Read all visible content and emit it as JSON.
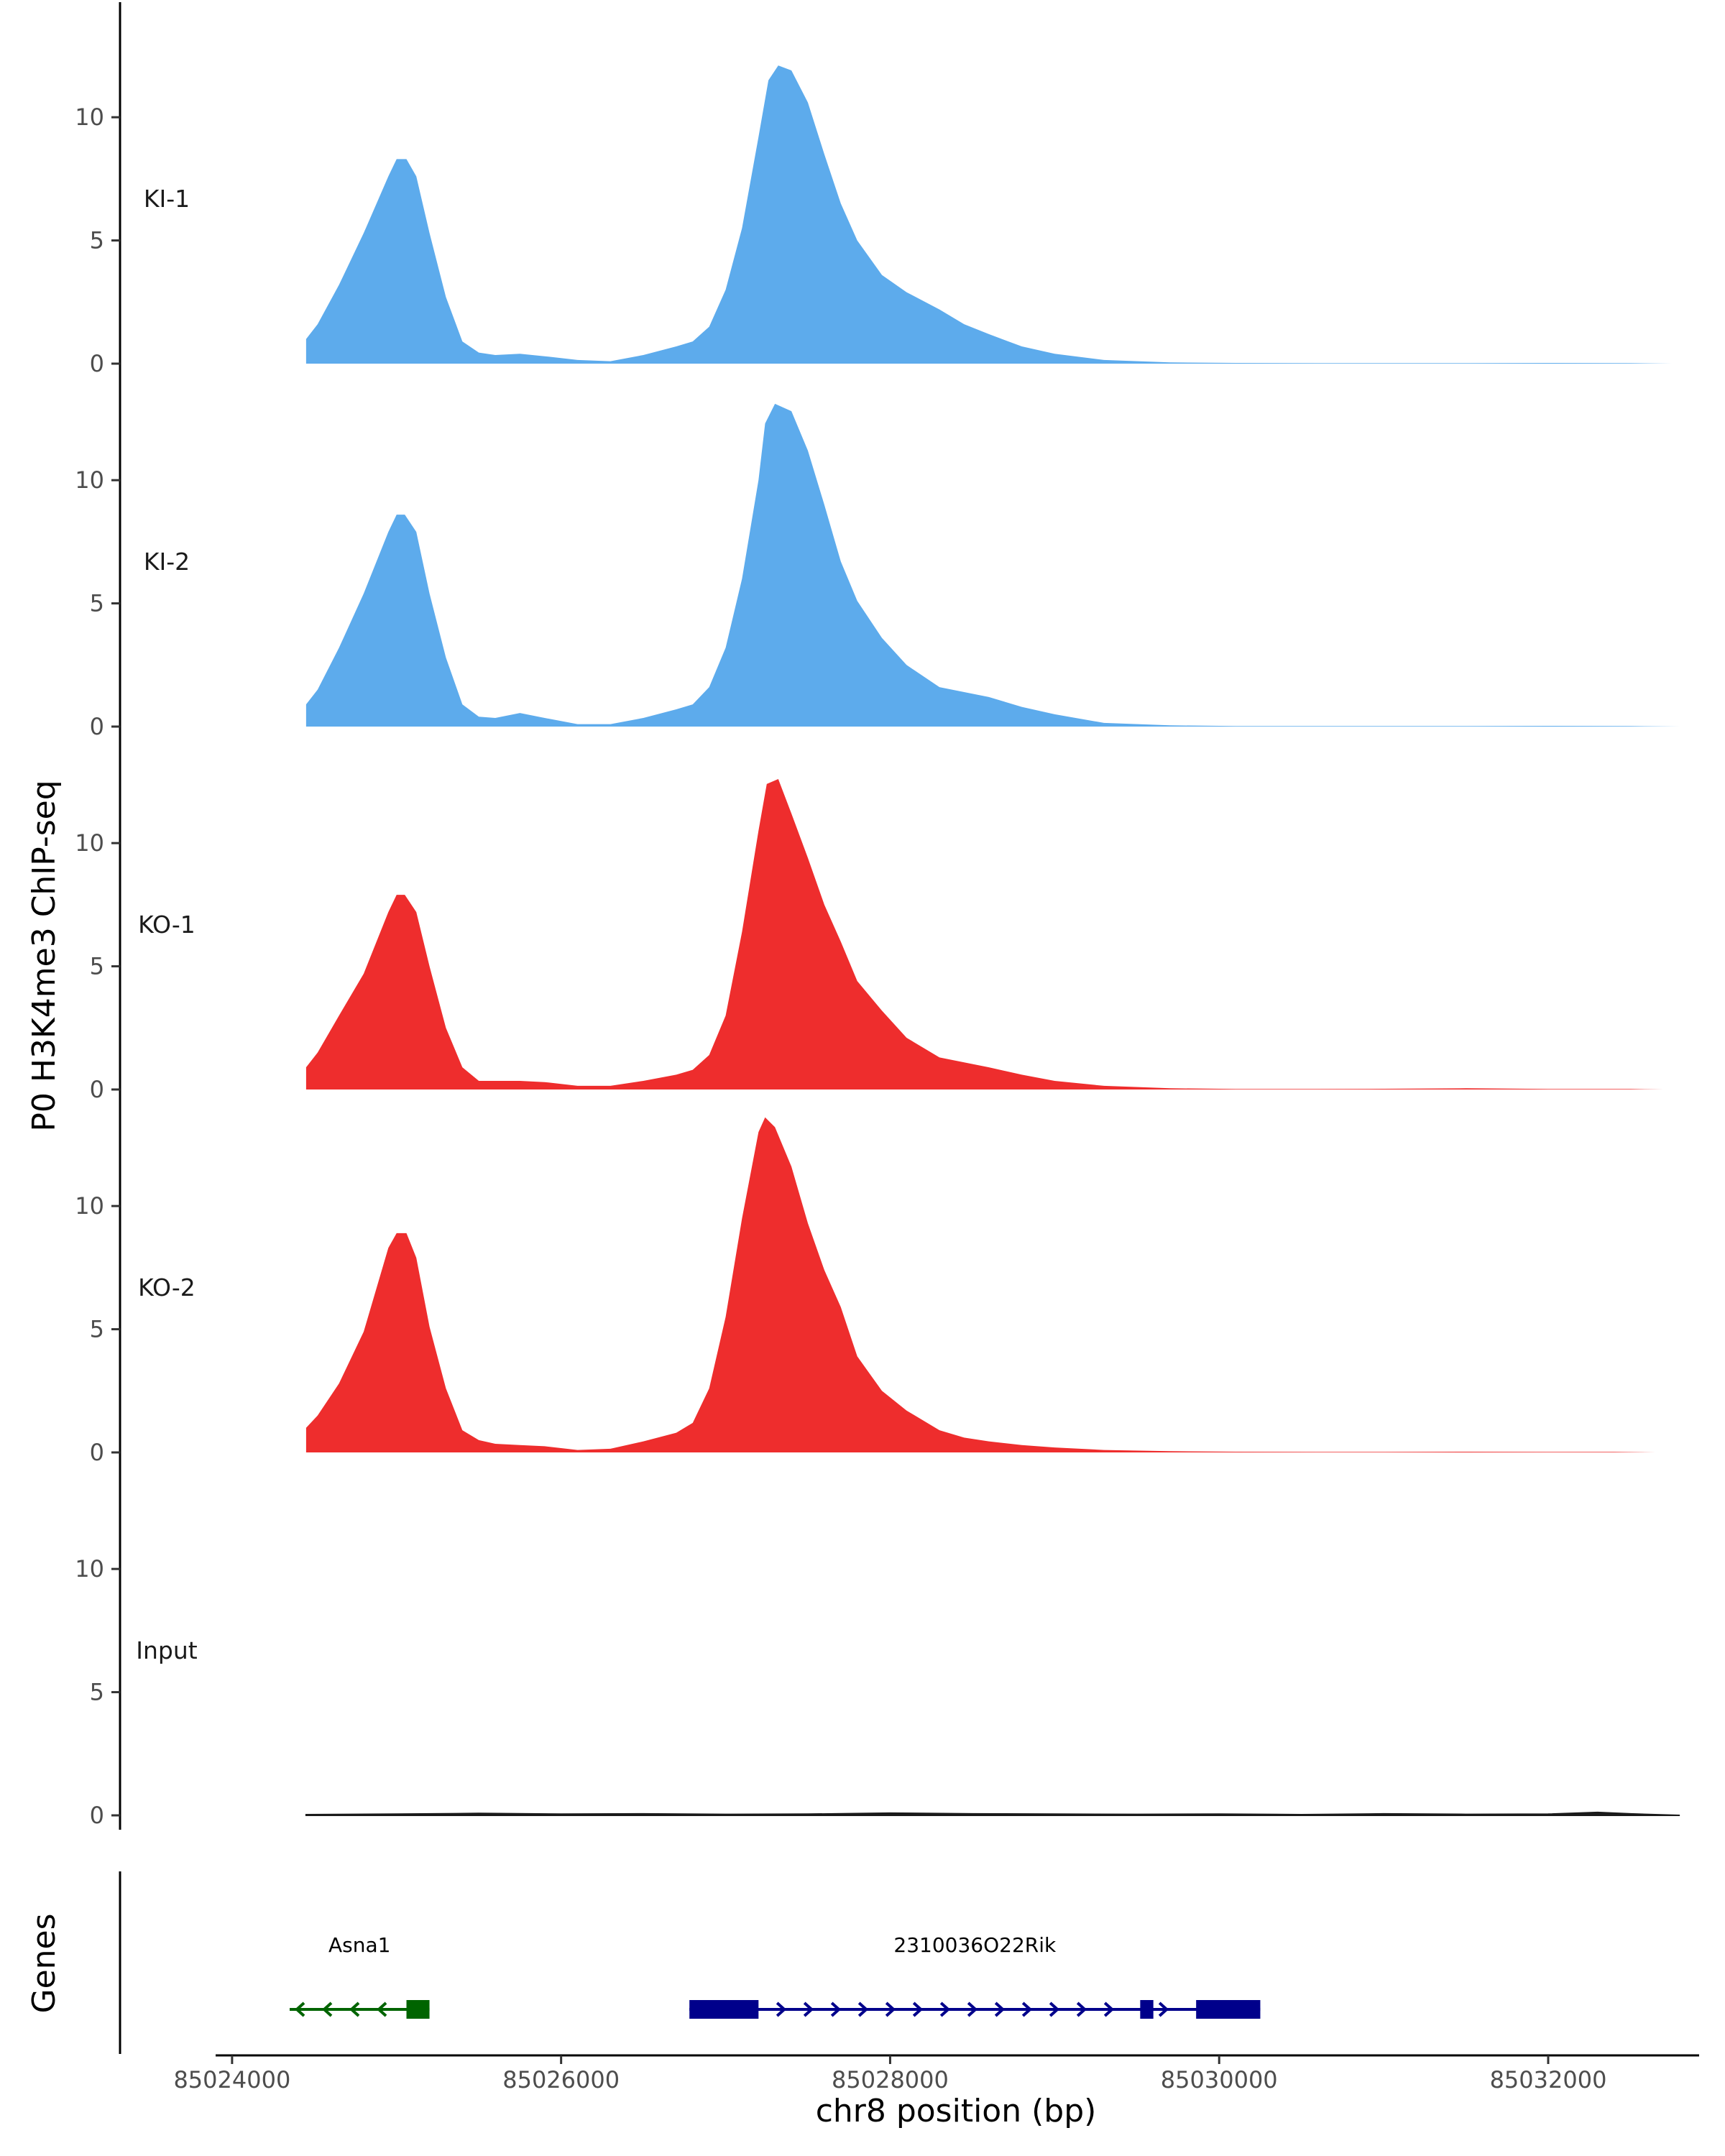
{
  "chart_data": {
    "type": "area",
    "ylabel": "P0 H3K4me3 ChIP-seq",
    "xlabel": "chr8 position (bp)",
    "xlim": [
      85023900,
      85032900
    ],
    "ylim": [
      0,
      14
    ],
    "y_ticks": [
      0,
      5,
      10
    ],
    "x_ticks": [
      85024000,
      85026000,
      85028000,
      85030000,
      85032000
    ],
    "x_tick_labels": [
      "85024000",
      "85026000",
      "85028000",
      "85030000",
      "85032000"
    ],
    "colors": {
      "KI": "#5DABEC",
      "KO": "#EE2D2D",
      "Input": "#1a1a1a",
      "Asna1": "#006400",
      "Rik": "#00008B"
    },
    "series": [
      {
        "name": "KI-1",
        "color": "#5DABEC",
        "x": [
          85024450,
          85024520,
          85024650,
          85024800,
          85024950,
          85025000,
          85025060,
          85025120,
          85025200,
          85025300,
          85025400,
          85025500,
          85025600,
          85025750,
          85025900,
          85026100,
          85026300,
          85026500,
          85026700,
          85026800,
          85026900,
          85027000,
          85027100,
          85027200,
          85027260,
          85027320,
          85027400,
          85027500,
          85027600,
          85027700,
          85027800,
          85027950,
          85028100,
          85028300,
          85028450,
          85028600,
          85028800,
          85029000,
          85029300,
          85029700,
          85030100,
          85030600,
          85031000,
          85031500,
          85032000,
          85032500,
          85032750
        ],
        "values": [
          1.0,
          1.6,
          3.2,
          5.3,
          7.6,
          8.3,
          8.3,
          7.6,
          5.3,
          2.7,
          0.9,
          0.45,
          0.35,
          0.4,
          0.3,
          0.15,
          0.1,
          0.35,
          0.7,
          0.9,
          1.5,
          3.0,
          5.5,
          9.2,
          11.5,
          12.1,
          11.9,
          10.6,
          8.5,
          6.5,
          5.0,
          3.6,
          2.9,
          2.2,
          1.6,
          1.2,
          0.7,
          0.4,
          0.15,
          0.05,
          0.03,
          0.02,
          0.02,
          0.02,
          0.03,
          0.02,
          0.0
        ]
      },
      {
        "name": "KI-2",
        "color": "#5DABEC",
        "x": [
          85024450,
          85024520,
          85024650,
          85024800,
          85024950,
          85025000,
          85025050,
          85025120,
          85025200,
          85025300,
          85025400,
          85025500,
          85025600,
          85025750,
          85025900,
          85026100,
          85026300,
          85026500,
          85026700,
          85026800,
          85026900,
          85027000,
          85027100,
          85027200,
          85027240,
          85027300,
          85027400,
          85027500,
          85027600,
          85027700,
          85027800,
          85027950,
          85028100,
          85028300,
          85028450,
          85028600,
          85028800,
          85029000,
          85029300,
          85029700,
          85030100,
          85030600,
          85031000,
          85031500,
          85032000,
          85032500,
          85032800
        ],
        "values": [
          0.9,
          1.5,
          3.2,
          5.4,
          7.9,
          8.6,
          8.6,
          7.9,
          5.4,
          2.8,
          0.9,
          0.4,
          0.35,
          0.55,
          0.35,
          0.1,
          0.1,
          0.35,
          0.7,
          0.9,
          1.6,
          3.2,
          6.0,
          10.0,
          12.3,
          13.1,
          12.8,
          11.2,
          9.0,
          6.7,
          5.1,
          3.6,
          2.5,
          1.6,
          1.4,
          1.2,
          0.8,
          0.5,
          0.15,
          0.05,
          0.02,
          0.02,
          0.02,
          0.02,
          0.03,
          0.02,
          0.0
        ]
      },
      {
        "name": "KO-1",
        "color": "#EE2D2D",
        "x": [
          85024450,
          85024520,
          85024650,
          85024800,
          85024950,
          85025000,
          85025050,
          85025120,
          85025200,
          85025300,
          85025400,
          85025500,
          85025600,
          85025750,
          85025900,
          85026100,
          85026300,
          85026500,
          85026700,
          85026800,
          85026900,
          85027000,
          85027100,
          85027200,
          85027250,
          85027320,
          85027400,
          85027500,
          85027600,
          85027700,
          85027800,
          85027950,
          85028100,
          85028300,
          85028450,
          85028600,
          85028800,
          85029000,
          85029300,
          85029700,
          85030100,
          85030600,
          85031000,
          85031500,
          85032000,
          85032500,
          85032700
        ],
        "values": [
          0.9,
          1.5,
          3.0,
          4.7,
          7.2,
          7.9,
          7.9,
          7.2,
          5.0,
          2.5,
          0.9,
          0.35,
          0.35,
          0.35,
          0.3,
          0.15,
          0.15,
          0.35,
          0.6,
          0.8,
          1.4,
          3.0,
          6.4,
          10.5,
          12.4,
          12.6,
          11.2,
          9.4,
          7.5,
          6.0,
          4.4,
          3.2,
          2.1,
          1.3,
          1.1,
          0.9,
          0.6,
          0.35,
          0.15,
          0.05,
          0.02,
          0.02,
          0.03,
          0.05,
          0.02,
          0.02,
          0.0
        ]
      },
      {
        "name": "KO-2",
        "color": "#EE2D2D",
        "x": [
          85024450,
          85024520,
          85024650,
          85024800,
          85024950,
          85025000,
          85025060,
          85025120,
          85025200,
          85025300,
          85025400,
          85025500,
          85025600,
          85025750,
          85025900,
          85026100,
          85026300,
          85026500,
          85026700,
          85026800,
          85026900,
          85027000,
          85027100,
          85027200,
          85027240,
          85027300,
          85027400,
          85027500,
          85027600,
          85027700,
          85027800,
          85027950,
          85028100,
          85028300,
          85028450,
          85028600,
          85028800,
          85029000,
          85029300,
          85029700,
          85030100,
          85030600,
          85031000,
          85031500,
          85032000,
          85032400,
          85032650
        ],
        "values": [
          1.0,
          1.5,
          2.8,
          4.9,
          8.3,
          8.9,
          8.9,
          7.9,
          5.1,
          2.6,
          0.9,
          0.5,
          0.35,
          0.3,
          0.25,
          0.1,
          0.15,
          0.45,
          0.8,
          1.2,
          2.6,
          5.5,
          9.5,
          13.0,
          13.6,
          13.2,
          11.6,
          9.3,
          7.4,
          5.9,
          3.9,
          2.5,
          1.7,
          0.9,
          0.6,
          0.45,
          0.3,
          0.2,
          0.1,
          0.05,
          0.03,
          0.02,
          0.02,
          0.03,
          0.02,
          0.02,
          0.0
        ]
      },
      {
        "name": "Input",
        "color": "#1a1a1a",
        "x": [
          85024450,
          85025000,
          85025500,
          85026000,
          85026500,
          85027000,
          85027500,
          85028000,
          85028500,
          85029000,
          85029500,
          85030000,
          85030500,
          85031000,
          85031500,
          85032000,
          85032300,
          85032500,
          85032800
        ],
        "values": [
          0.03,
          0.05,
          0.08,
          0.05,
          0.06,
          0.04,
          0.05,
          0.09,
          0.06,
          0.05,
          0.04,
          0.05,
          0.03,
          0.06,
          0.04,
          0.05,
          0.12,
          0.06,
          0.0
        ]
      }
    ],
    "genes": [
      {
        "name": "Asna1",
        "strand": "-",
        "color": "#006400",
        "start": 85024350,
        "end": 85025200,
        "exons": [
          [
            85025060,
            85025200
          ]
        ]
      },
      {
        "name": "2310036O22Rik",
        "strand": "+",
        "color": "#00008B",
        "start": 85026780,
        "end": 85030250,
        "exons": [
          [
            85026780,
            85027200
          ],
          [
            85029520,
            85029600
          ],
          [
            85029860,
            85030250
          ]
        ]
      }
    ]
  },
  "genes_track_label": "Genes"
}
